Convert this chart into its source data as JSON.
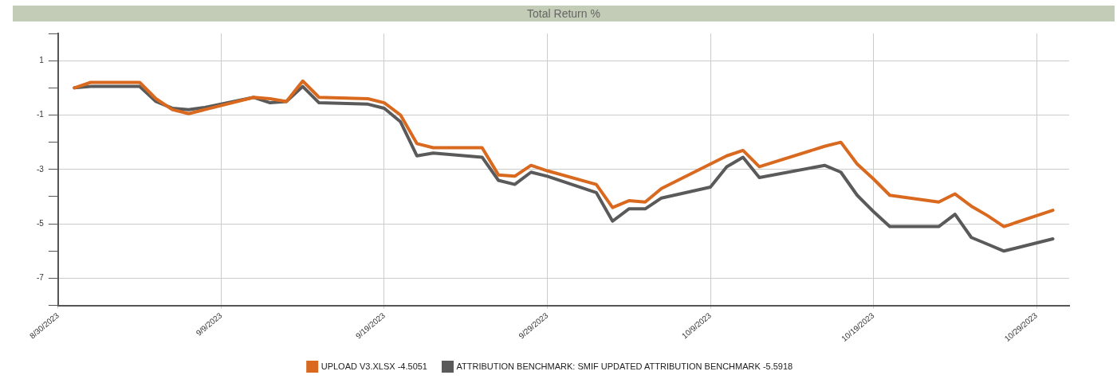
{
  "chart_data": {
    "type": "line",
    "title": "Total Return %",
    "x": [
      "2023-08-31",
      "2023-09-01",
      "2023-09-04",
      "2023-09-05",
      "2023-09-06",
      "2023-09-07",
      "2023-09-08",
      "2023-09-11",
      "2023-09-12",
      "2023-09-13",
      "2023-09-14",
      "2023-09-15",
      "2023-09-18",
      "2023-09-19",
      "2023-09-20",
      "2023-09-21",
      "2023-09-22",
      "2023-09-25",
      "2023-09-26",
      "2023-09-27",
      "2023-09-28",
      "2023-09-29",
      "2023-10-02",
      "2023-10-03",
      "2023-10-04",
      "2023-10-05",
      "2023-10-06",
      "2023-10-09",
      "2023-10-10",
      "2023-10-11",
      "2023-10-12",
      "2023-10-16",
      "2023-10-17",
      "2023-10-18",
      "2023-10-19",
      "2023-10-20",
      "2023-10-23",
      "2023-10-24",
      "2023-10-25",
      "2023-10-26",
      "2023-10-27",
      "2023-10-30"
    ],
    "series": [
      {
        "name": "UPLOAD V3.XLSX -4.5051",
        "color": "#d9691e",
        "values": [
          0.0,
          0.2,
          0.2,
          -0.4,
          -0.8,
          -0.95,
          -0.8,
          -0.35,
          -0.4,
          -0.5,
          0.25,
          -0.35,
          -0.4,
          -0.55,
          -1.0,
          -2.05,
          -2.2,
          -2.2,
          -3.2,
          -3.25,
          -2.85,
          -3.05,
          -3.55,
          -4.4,
          -4.15,
          -4.2,
          -3.7,
          -2.8,
          -2.5,
          -2.3,
          -2.9,
          -2.15,
          -2.0,
          -2.8,
          -3.35,
          -3.95,
          -4.2,
          -3.9,
          -4.35,
          -4.7,
          -5.1,
          -4.5
        ]
      },
      {
        "name": "ATTRIBUTION BENCHMARK: SMIF UPDATED ATTRIBUTION BENCHMARK -5.5918",
        "color": "#5a5a5a",
        "values": [
          0.0,
          0.05,
          0.05,
          -0.5,
          -0.75,
          -0.8,
          -0.72,
          -0.35,
          -0.55,
          -0.5,
          0.05,
          -0.55,
          -0.6,
          -0.75,
          -1.25,
          -2.5,
          -2.4,
          -2.55,
          -3.4,
          -3.55,
          -3.1,
          -3.25,
          -3.85,
          -4.9,
          -4.45,
          -4.45,
          -4.05,
          -3.65,
          -2.9,
          -2.55,
          -3.3,
          -2.85,
          -3.1,
          -3.95,
          -4.55,
          -5.1,
          -5.1,
          -4.65,
          -5.5,
          -5.75,
          -6.0,
          -5.55
        ]
      }
    ],
    "xlim": [
      "2023-08-30",
      "2023-10-31"
    ],
    "xticks": [
      {
        "value": "2023-08-30",
        "label": "8/30/2023"
      },
      {
        "value": "2023-09-09",
        "label": "9/9/2023"
      },
      {
        "value": "2023-09-19",
        "label": "9/19/2023"
      },
      {
        "value": "2023-09-29",
        "label": "9/29/2023"
      },
      {
        "value": "2023-10-09",
        "label": "10/9/2023"
      },
      {
        "value": "2023-10-19",
        "label": "10/19/2023"
      },
      {
        "value": "2023-10-29",
        "label": "10/29/2023"
      }
    ],
    "ylim": [
      -8,
      2
    ],
    "yticks": [
      {
        "value": 2,
        "label": null
      },
      1,
      {
        "value": 0,
        "label": null
      },
      -1,
      {
        "value": -2,
        "label": null
      },
      -3,
      {
        "value": -4,
        "label": null
      },
      -5,
      {
        "value": -6,
        "label": null
      },
      -7,
      {
        "value": -8,
        "label": null
      }
    ],
    "grid": true,
    "legend": "bottom",
    "marker": "none",
    "line_style": "solid"
  }
}
